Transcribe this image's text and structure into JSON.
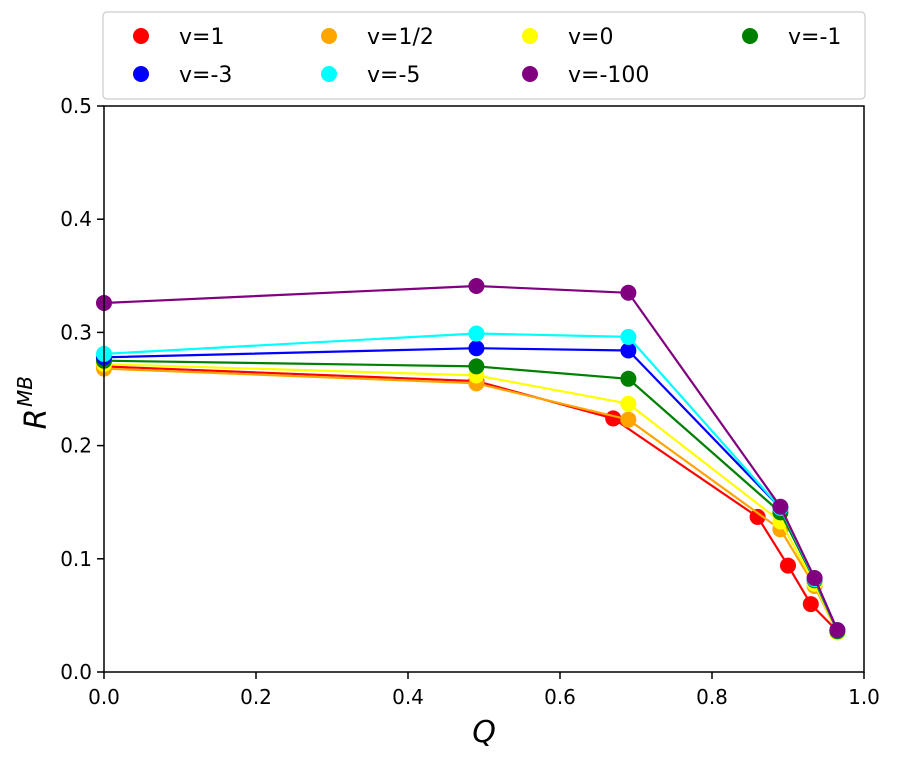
{
  "chart_data": {
    "type": "line",
    "title": "",
    "xlabel": "Q",
    "ylabel_main": "R",
    "ylabel_sup": "MB",
    "xlim": [
      0.0,
      1.0
    ],
    "ylim": [
      0.0,
      0.5
    ],
    "xticks": [
      "0.0",
      "0.2",
      "0.4",
      "0.6",
      "0.8",
      "1.0"
    ],
    "yticks": [
      "0.0",
      "0.1",
      "0.2",
      "0.3",
      "0.4",
      "0.5"
    ],
    "grid": false,
    "legend_position": "top",
    "series": [
      {
        "name": "v=1",
        "color": "#ff0000",
        "x": [
          0.0,
          0.49,
          0.67,
          0.86,
          0.9,
          0.93,
          0.965
        ],
        "y": [
          0.27,
          0.257,
          0.224,
          0.137,
          0.094,
          0.06,
          0.036
        ]
      },
      {
        "name": "v=1/2",
        "color": "#ffa500",
        "x": [
          0.0,
          0.49,
          0.69,
          0.89,
          0.935,
          0.965
        ],
        "y": [
          0.268,
          0.255,
          0.223,
          0.126,
          0.076,
          0.035
        ]
      },
      {
        "name": "v=0",
        "color": "#ffff00",
        "x": [
          0.0,
          0.49,
          0.69,
          0.89,
          0.935,
          0.965
        ],
        "y": [
          0.272,
          0.262,
          0.237,
          0.133,
          0.078,
          0.035
        ]
      },
      {
        "name": "v=-1",
        "color": "#008000",
        "x": [
          0.0,
          0.49,
          0.69,
          0.89,
          0.935,
          0.965
        ],
        "y": [
          0.275,
          0.27,
          0.259,
          0.141,
          0.081,
          0.036
        ]
      },
      {
        "name": "v=-3",
        "color": "#0000ff",
        "x": [
          0.0,
          0.49,
          0.69,
          0.89,
          0.935,
          0.965
        ],
        "y": [
          0.278,
          0.286,
          0.284,
          0.145,
          0.082,
          0.037
        ]
      },
      {
        "name": "v=-5",
        "color": "#00ffff",
        "x": [
          0.0,
          0.49,
          0.69,
          0.89,
          0.935,
          0.965
        ],
        "y": [
          0.281,
          0.299,
          0.296,
          0.145,
          0.082,
          0.037
        ]
      },
      {
        "name": "v=-100",
        "color": "#800080",
        "x": [
          0.0,
          0.49,
          0.69,
          0.89,
          0.935,
          0.965
        ],
        "y": [
          0.326,
          0.341,
          0.335,
          0.146,
          0.083,
          0.037
        ]
      }
    ],
    "legend_order": [
      "v=1",
      "v=1/2",
      "v=0",
      "v=-1",
      "v=-3",
      "v=-5",
      "v=-100"
    ]
  }
}
